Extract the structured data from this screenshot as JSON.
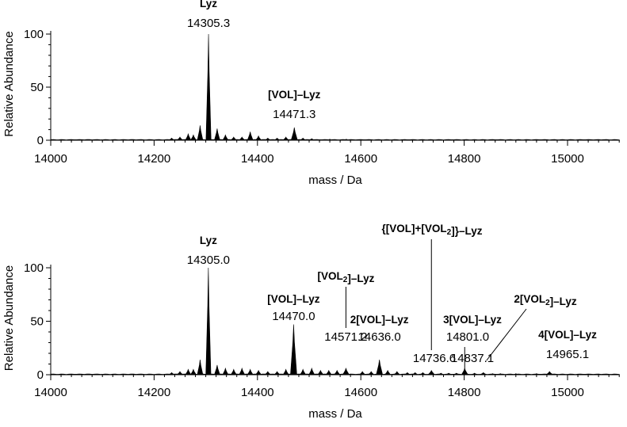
{
  "chart_data": [
    {
      "type": "line",
      "xlabel": "mass / Da",
      "ylabel": "Relative Abundance",
      "xlim": [
        14000,
        15100
      ],
      "ylim": [
        0,
        100
      ],
      "xticks": [
        14000,
        14200,
        14400,
        14600,
        14800,
        15000
      ],
      "yticks": [
        0,
        50,
        100
      ],
      "peaks": [
        {
          "x": 14305.3,
          "y": 100,
          "label": "Lyz",
          "mass": "14305.3"
        },
        {
          "x": 14471.3,
          "y": 12,
          "label": "[VOL]–Lyz",
          "mass": "14471.3"
        }
      ],
      "minor_peaks": [
        {
          "x": 14234,
          "y": 2
        },
        {
          "x": 14250,
          "y": 3
        },
        {
          "x": 14266,
          "y": 6
        },
        {
          "x": 14276,
          "y": 5
        },
        {
          "x": 14289,
          "y": 14
        },
        {
          "x": 14322,
          "y": 11
        },
        {
          "x": 14338,
          "y": 5
        },
        {
          "x": 14354,
          "y": 3
        },
        {
          "x": 14370,
          "y": 3
        },
        {
          "x": 14386,
          "y": 8
        },
        {
          "x": 14402,
          "y": 4
        },
        {
          "x": 14420,
          "y": 2
        },
        {
          "x": 14438,
          "y": 2
        },
        {
          "x": 14455,
          "y": 3
        },
        {
          "x": 14488,
          "y": 2
        },
        {
          "x": 14505,
          "y": 1.5
        },
        {
          "x": 14540,
          "y": 1
        },
        {
          "x": 14572,
          "y": 1
        }
      ]
    },
    {
      "type": "line",
      "xlabel": "mass / Da",
      "ylabel": "Relative Abundance",
      "xlim": [
        14000,
        15100
      ],
      "ylim": [
        0,
        100
      ],
      "xticks": [
        14000,
        14200,
        14400,
        14600,
        14800,
        15000
      ],
      "yticks": [
        0,
        50,
        100
      ],
      "peaks": [
        {
          "x": 14305.0,
          "y": 100,
          "label": "Lyz",
          "mass": "14305.0"
        },
        {
          "x": 14470.0,
          "y": 47,
          "label": "[VOL]–Lyz",
          "mass": "14470.0"
        },
        {
          "x": 14571.2,
          "y": 6,
          "label": "[VOL2]–Lyz",
          "mass": "14571.2"
        },
        {
          "x": 14636.0,
          "y": 14,
          "label": "2[VOL]–Lyz",
          "mass": "14636.0"
        },
        {
          "x": 14736.6,
          "y": 4,
          "label": "{[VOL]+[VOL2]}–Lyz",
          "mass": "14736.6"
        },
        {
          "x": 14801.0,
          "y": 6,
          "label": "3[VOL]–Lyz",
          "mass": "14801.0"
        },
        {
          "x": 14837.1,
          "y": 2,
          "label": "2[VOL2]–Lyz",
          "mass": "14837.1"
        },
        {
          "x": 14965.1,
          "y": 3,
          "label": "4[VOL]–Lyz",
          "mass": "14965.1"
        }
      ],
      "minor_peaks": [
        {
          "x": 14234,
          "y": 2
        },
        {
          "x": 14250,
          "y": 3
        },
        {
          "x": 14266,
          "y": 5
        },
        {
          "x": 14276,
          "y": 5
        },
        {
          "x": 14289,
          "y": 14
        },
        {
          "x": 14322,
          "y": 9
        },
        {
          "x": 14338,
          "y": 6
        },
        {
          "x": 14354,
          "y": 5
        },
        {
          "x": 14370,
          "y": 6
        },
        {
          "x": 14386,
          "y": 5
        },
        {
          "x": 14402,
          "y": 4
        },
        {
          "x": 14420,
          "y": 3
        },
        {
          "x": 14438,
          "y": 3
        },
        {
          "x": 14455,
          "y": 5
        },
        {
          "x": 14488,
          "y": 5
        },
        {
          "x": 14505,
          "y": 6
        },
        {
          "x": 14522,
          "y": 4
        },
        {
          "x": 14538,
          "y": 4
        },
        {
          "x": 14554,
          "y": 4
        },
        {
          "x": 14603,
          "y": 3
        },
        {
          "x": 14620,
          "y": 3
        },
        {
          "x": 14652,
          "y": 4
        },
        {
          "x": 14670,
          "y": 3
        },
        {
          "x": 14690,
          "y": 2
        },
        {
          "x": 14705,
          "y": 2
        },
        {
          "x": 14720,
          "y": 2
        },
        {
          "x": 14755,
          "y": 1.5
        },
        {
          "x": 14770,
          "y": 1.5
        },
        {
          "x": 14785,
          "y": 1.5
        },
        {
          "x": 14820,
          "y": 1.5
        },
        {
          "x": 14855,
          "y": 1
        },
        {
          "x": 14870,
          "y": 1
        },
        {
          "x": 14900,
          "y": 1
        },
        {
          "x": 14940,
          "y": 1
        }
      ]
    }
  ]
}
